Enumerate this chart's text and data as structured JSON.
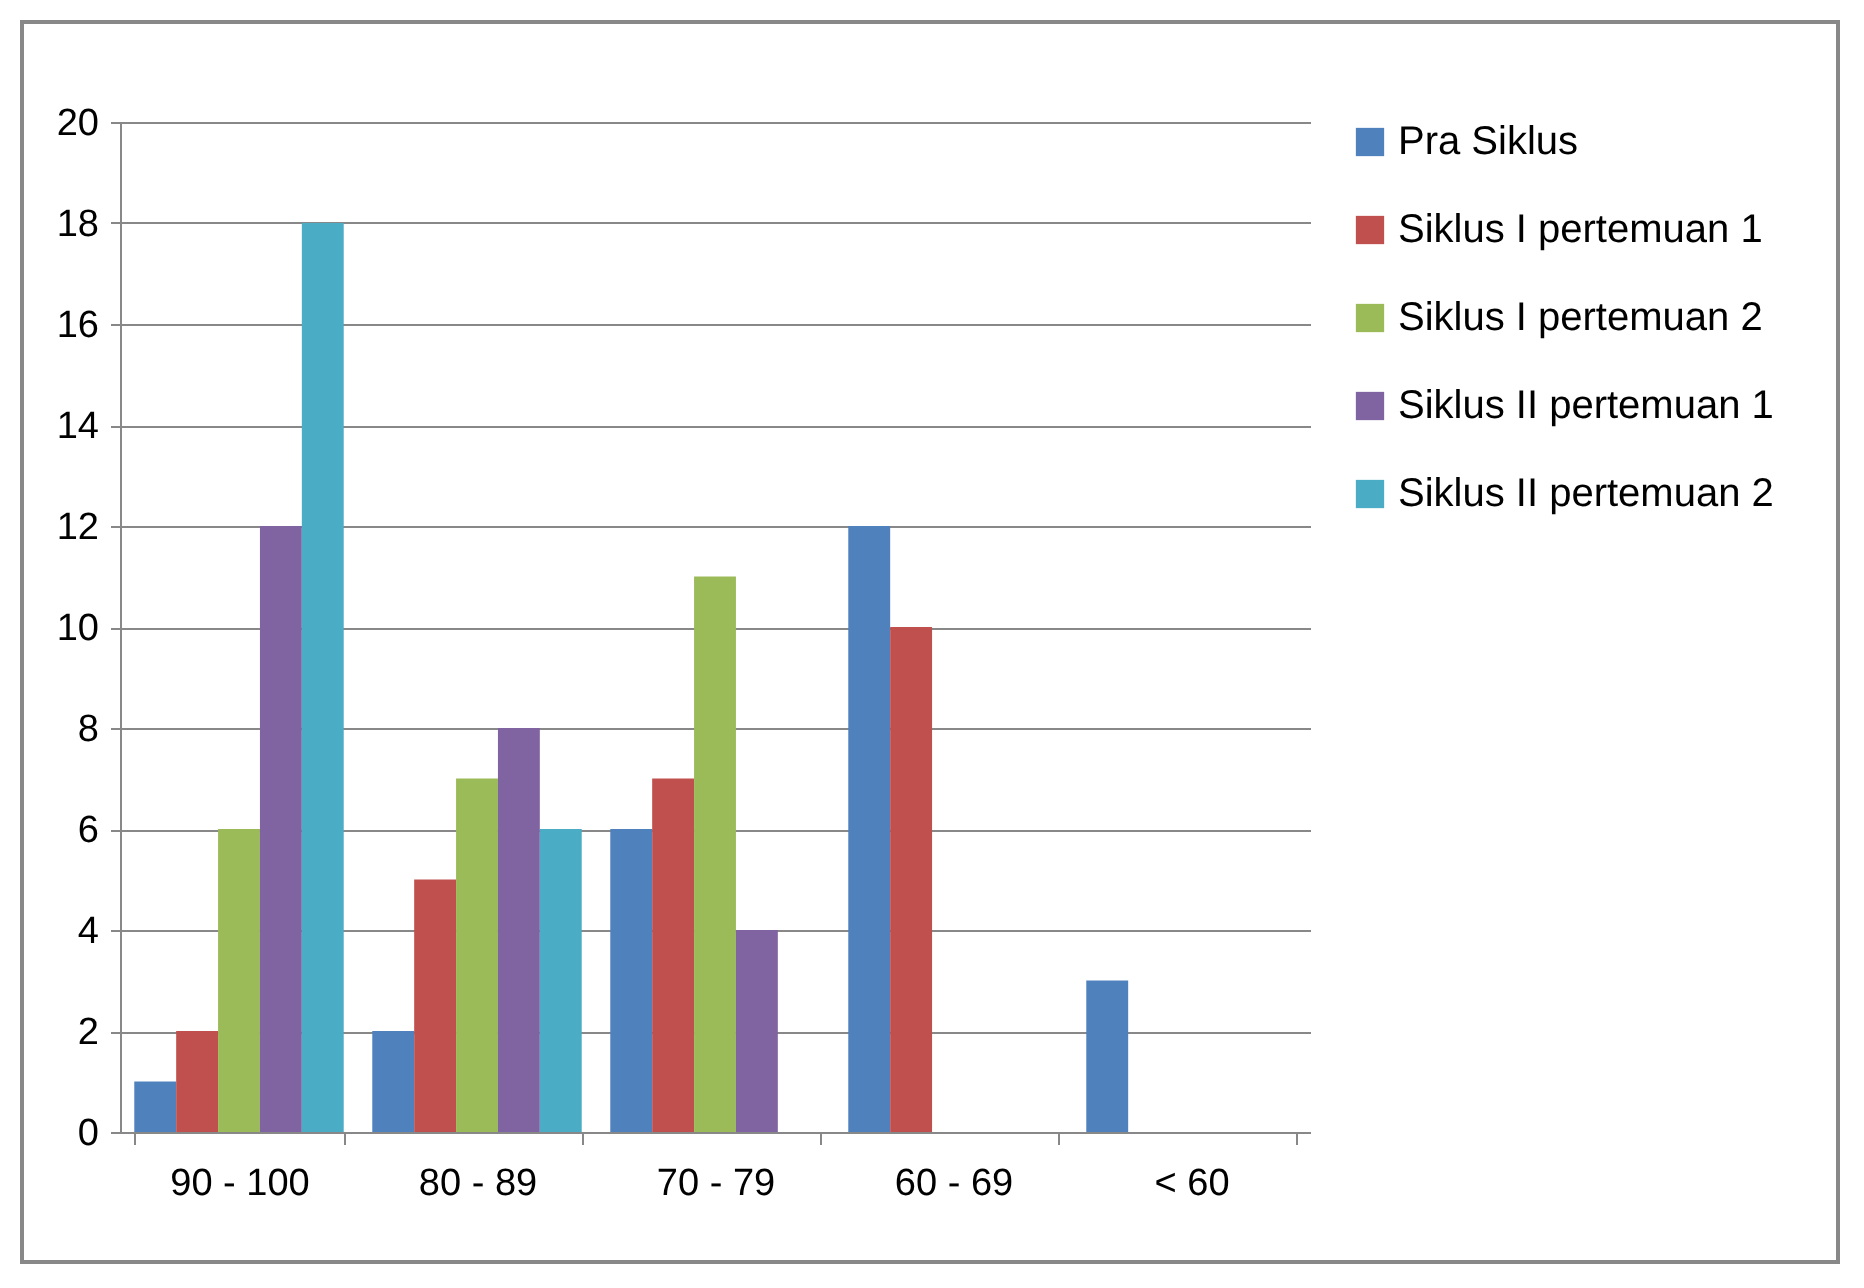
{
  "chart_data": {
    "type": "bar",
    "categories": [
      "90 - 100",
      "80 - 89",
      "70 - 79",
      "60 - 69",
      "< 60"
    ],
    "series": [
      {
        "name": "Pra Siklus",
        "color": "#4f81bd",
        "values": [
          1,
          2,
          6,
          12,
          3
        ]
      },
      {
        "name": "Siklus I pertemuan 1",
        "color": "#c0504d",
        "values": [
          2,
          5,
          7,
          10,
          0
        ]
      },
      {
        "name": "Siklus I pertemuan 2",
        "color": "#9bbb59",
        "values": [
          6,
          7,
          11,
          0,
          0
        ]
      },
      {
        "name": "Siklus II pertemuan 1",
        "color": "#8064a2",
        "values": [
          12,
          8,
          4,
          0,
          0
        ]
      },
      {
        "name": "Siklus II pertemuan 2",
        "color": "#4bacc6",
        "values": [
          18,
          6,
          0,
          0,
          0
        ]
      }
    ],
    "ylim": [
      0,
      20
    ],
    "yticks": [
      0,
      2,
      4,
      6,
      8,
      10,
      12,
      14,
      16,
      18,
      20
    ],
    "grid": "y",
    "legend": "right"
  }
}
